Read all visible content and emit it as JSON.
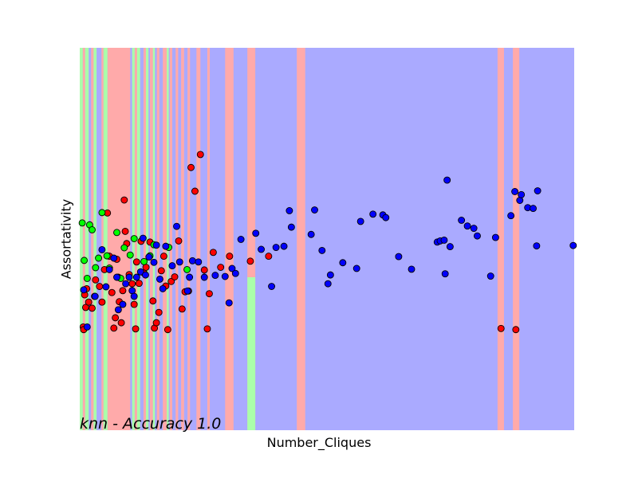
{
  "chart_data": {
    "type": "scatter",
    "title": "knn - Accuracy 1.0",
    "xlabel": "Number_Cliques",
    "ylabel": "Assortativity",
    "xlim": [
      0,
      100
    ],
    "ylim": [
      0,
      100
    ],
    "grid": false,
    "colors": {
      "background_region": "#aaaaff",
      "red_region": "#ffaaaa",
      "green_region": "#aaffaa",
      "red_point": "#ff0000",
      "green_point": "#00ff00",
      "blue_point": "#0000ff",
      "point_edge": "#000000"
    },
    "regions": [
      {
        "class": "red",
        "x_start": 0.6,
        "x_end": 1.1
      },
      {
        "class": "red",
        "x_start": 2.3,
        "x_end": 2.8
      },
      {
        "class": "red",
        "x_start": 4.4,
        "x_end": 4.8
      },
      {
        "class": "red",
        "x_start": 5.6,
        "x_end": 10.2
      },
      {
        "class": "red",
        "x_start": 11.1,
        "x_end": 11.6
      },
      {
        "class": "red",
        "x_start": 12.9,
        "x_end": 13.4
      },
      {
        "class": "red",
        "x_start": 14.2,
        "x_end": 14.8
      },
      {
        "class": "red",
        "x_start": 15.6,
        "x_end": 16.1
      },
      {
        "class": "red",
        "x_start": 16.8,
        "x_end": 17.6
      },
      {
        "class": "red",
        "x_start": 18.2,
        "x_end": 18.7
      },
      {
        "class": "red",
        "x_start": 19.4,
        "x_end": 19.9
      },
      {
        "class": "red",
        "x_start": 20.5,
        "x_end": 21.1
      },
      {
        "class": "red",
        "x_start": 21.8,
        "x_end": 22.3
      },
      {
        "class": "red",
        "x_start": 23.6,
        "x_end": 24.4
      },
      {
        "class": "red",
        "x_start": 25.8,
        "x_end": 26.3
      },
      {
        "class": "red",
        "x_start": 29.4,
        "x_end": 31.1
      },
      {
        "class": "red",
        "x_start": 33.9,
        "x_end": 35.5
      },
      {
        "class": "red",
        "x_start": 43.9,
        "x_end": 45.6
      },
      {
        "class": "red",
        "x_start": 84.5,
        "x_end": 85.8
      },
      {
        "class": "red",
        "x_start": 87.6,
        "x_end": 88.9
      },
      {
        "class": "green",
        "x_start": 0.0,
        "x_end": 0.6
      },
      {
        "class": "green",
        "x_start": 1.1,
        "x_end": 1.8
      },
      {
        "class": "green",
        "x_start": 2.8,
        "x_end": 3.4
      },
      {
        "class": "green",
        "x_start": 4.8,
        "x_end": 5.6
      },
      {
        "class": "green",
        "x_start": 10.6,
        "x_end": 11.1
      },
      {
        "class": "green",
        "x_start": 11.6,
        "x_end": 12.2
      },
      {
        "class": "green",
        "x_start": 13.4,
        "x_end": 13.9
      },
      {
        "class": "green",
        "x_start": 14.8,
        "x_end": 15.2
      },
      {
        "class": "green",
        "x_start": 17.6,
        "x_end": 18.0
      },
      {
        "class": "green",
        "x_start": 33.9,
        "x_end": 35.5,
        "y_start": 0,
        "y_end": 40
      }
    ],
    "series": [
      {
        "class": "red",
        "points": [
          [
            0.7,
            27.0
          ],
          [
            0.8,
            26.3
          ],
          [
            1.0,
            35.4
          ],
          [
            1.2,
            32.1
          ],
          [
            1.4,
            37.0
          ],
          [
            1.8,
            33.5
          ],
          [
            2.5,
            31.9
          ],
          [
            3.0,
            35.0
          ],
          [
            3.2,
            39.3
          ],
          [
            4.0,
            37.6
          ],
          [
            4.5,
            33.5
          ],
          [
            5.0,
            42.0
          ],
          [
            5.6,
            56.8
          ],
          [
            6.0,
            45.5
          ],
          [
            6.5,
            36.0
          ],
          [
            6.9,
            26.7
          ],
          [
            7.2,
            29.4
          ],
          [
            7.5,
            44.7
          ],
          [
            7.8,
            40.0
          ],
          [
            8.0,
            33.6
          ],
          [
            8.4,
            28.1
          ],
          [
            8.7,
            36.5
          ],
          [
            9.0,
            60.2
          ],
          [
            9.2,
            52.0
          ],
          [
            9.5,
            48.8
          ],
          [
            10.0,
            40.7
          ],
          [
            10.6,
            38.3
          ],
          [
            11.0,
            32.9
          ],
          [
            11.3,
            26.5
          ],
          [
            11.5,
            44.0
          ],
          [
            12.0,
            38.4
          ],
          [
            12.4,
            49.4
          ],
          [
            13.0,
            41.1
          ],
          [
            13.4,
            42.6
          ],
          [
            14.2,
            49.2
          ],
          [
            14.8,
            33.8
          ],
          [
            15.1,
            26.7
          ],
          [
            15.5,
            28.1
          ],
          [
            16.0,
            30.8
          ],
          [
            16.5,
            41.7
          ],
          [
            17.0,
            45.5
          ],
          [
            17.4,
            37.7
          ],
          [
            17.8,
            26.3
          ],
          [
            18.5,
            38.9
          ],
          [
            19.2,
            40.1
          ],
          [
            20.0,
            49.5
          ],
          [
            20.7,
            31.7
          ],
          [
            21.3,
            36.2
          ],
          [
            22.0,
            36.4
          ],
          [
            22.5,
            68.7
          ],
          [
            23.3,
            62.5
          ],
          [
            24.4,
            72.1
          ],
          [
            25.2,
            41.9
          ],
          [
            25.8,
            26.5
          ],
          [
            26.2,
            35.7
          ],
          [
            27.0,
            46.5
          ],
          [
            28.5,
            42.6
          ],
          [
            30.3,
            45.5
          ],
          [
            34.5,
            44.2
          ],
          [
            38.2,
            45.5
          ],
          [
            85.2,
            26.6
          ],
          [
            88.2,
            26.3
          ]
        ]
      },
      {
        "class": "green",
        "points": [
          [
            0.5,
            54.2
          ],
          [
            0.9,
            44.4
          ],
          [
            1.5,
            39.7
          ],
          [
            2.0,
            53.7
          ],
          [
            2.5,
            52.4
          ],
          [
            3.2,
            42.5
          ],
          [
            3.8,
            45.0
          ],
          [
            4.5,
            56.9
          ],
          [
            5.5,
            45.6
          ],
          [
            6.0,
            42.4
          ],
          [
            7.5,
            51.7
          ],
          [
            8.3,
            39.7
          ],
          [
            9.0,
            47.7
          ],
          [
            10.2,
            45.8
          ],
          [
            11.0,
            50.1
          ],
          [
            13.0,
            44.1
          ],
          [
            14.2,
            45.6
          ],
          [
            15.0,
            48.5
          ],
          [
            18.0,
            47.8
          ],
          [
            21.7,
            42.0
          ]
        ]
      },
      {
        "class": "blue",
        "points": [
          [
            0.8,
            36.7
          ],
          [
            1.5,
            27.0
          ],
          [
            3.1,
            35.0
          ],
          [
            4.5,
            47.2
          ],
          [
            5.3,
            37.5
          ],
          [
            6.0,
            42.0
          ],
          [
            6.9,
            45.0
          ],
          [
            7.5,
            40.0
          ],
          [
            7.8,
            31.5
          ],
          [
            8.7,
            32.9
          ],
          [
            9.3,
            38.3
          ],
          [
            10.0,
            40.0
          ],
          [
            10.6,
            36.5
          ],
          [
            11.0,
            35.0
          ],
          [
            11.5,
            40.0
          ],
          [
            12.3,
            41.4
          ],
          [
            12.8,
            50.2
          ],
          [
            13.3,
            40.6
          ],
          [
            14.0,
            45.3
          ],
          [
            15.0,
            43.9
          ],
          [
            15.5,
            48.4
          ],
          [
            16.2,
            39.5
          ],
          [
            16.8,
            37.0
          ],
          [
            17.4,
            48.1
          ],
          [
            18.7,
            43.0
          ],
          [
            19.6,
            53.3
          ],
          [
            20.2,
            44.0
          ],
          [
            21.8,
            36.4
          ],
          [
            22.2,
            40.0
          ],
          [
            22.8,
            44.3
          ],
          [
            24.0,
            44.0
          ],
          [
            25.2,
            40.0
          ],
          [
            27.4,
            40.5
          ],
          [
            29.4,
            40.2
          ],
          [
            30.2,
            33.3
          ],
          [
            30.8,
            42.3
          ],
          [
            31.5,
            41.0
          ],
          [
            32.6,
            49.9
          ],
          [
            35.6,
            51.5
          ],
          [
            36.7,
            47.3
          ],
          [
            38.8,
            37.6
          ],
          [
            39.7,
            47.8
          ],
          [
            41.3,
            48.1
          ],
          [
            42.4,
            57.4
          ],
          [
            42.8,
            53.1
          ],
          [
            46.8,
            51.2
          ],
          [
            47.5,
            57.6
          ],
          [
            49.0,
            47.0
          ],
          [
            50.2,
            38.3
          ],
          [
            50.7,
            40.6
          ],
          [
            53.2,
            43.8
          ],
          [
            56.0,
            42.3
          ],
          [
            56.8,
            54.6
          ],
          [
            59.3,
            56.5
          ],
          [
            61.3,
            56.3
          ],
          [
            61.9,
            55.6
          ],
          [
            64.5,
            45.4
          ],
          [
            67.1,
            42.1
          ],
          [
            72.3,
            49.2
          ],
          [
            72.9,
            49.5
          ],
          [
            73.7,
            49.7
          ],
          [
            73.9,
            40.9
          ],
          [
            74.3,
            65.4
          ],
          [
            74.9,
            48.0
          ],
          [
            77.2,
            54.9
          ],
          [
            78.4,
            53.4
          ],
          [
            79.7,
            52.8
          ],
          [
            80.4,
            50.8
          ],
          [
            83.1,
            40.3
          ],
          [
            84.1,
            50.4
          ],
          [
            87.2,
            56.1
          ],
          [
            89.0,
            60.1
          ],
          [
            89.3,
            61.6
          ],
          [
            88.0,
            62.4
          ],
          [
            90.6,
            58.2
          ],
          [
            91.7,
            58.0
          ],
          [
            92.6,
            62.6
          ],
          [
            92.4,
            48.2
          ],
          [
            99.8,
            48.3
          ]
        ]
      }
    ]
  }
}
